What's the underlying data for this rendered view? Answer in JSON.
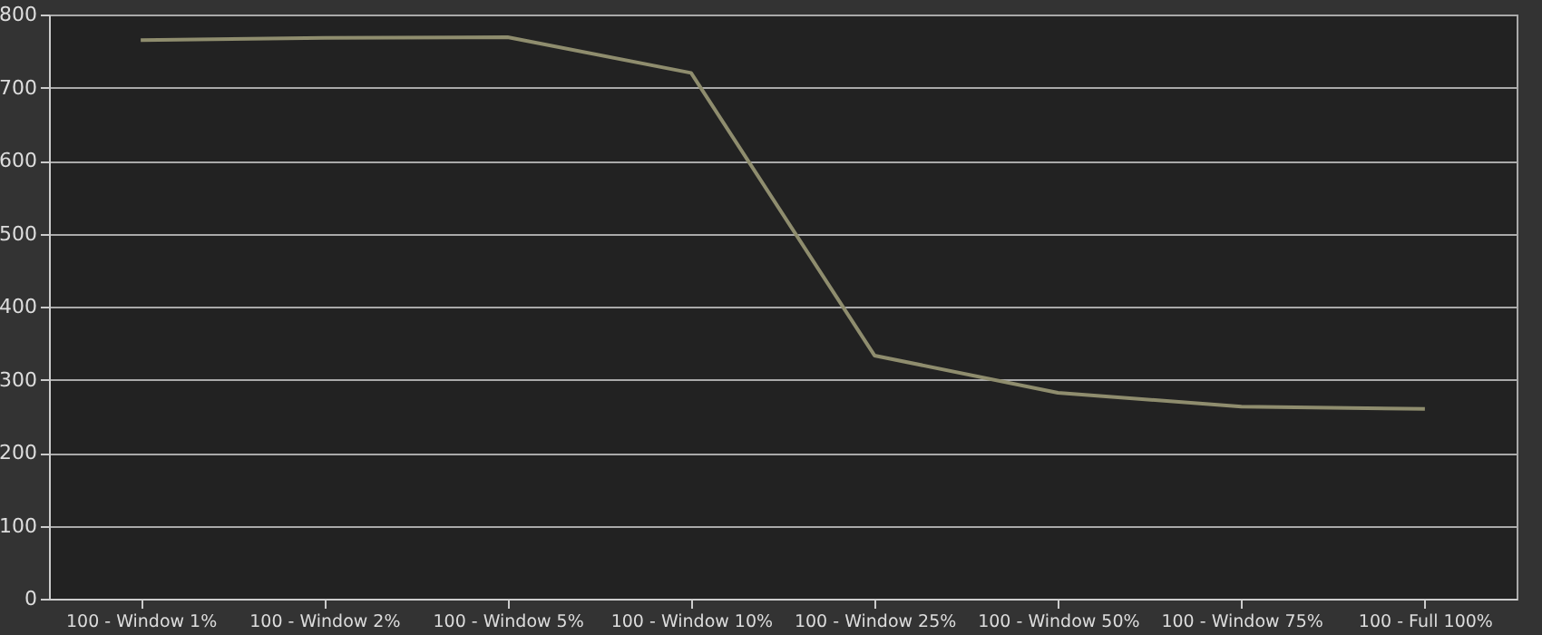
{
  "chart_data": {
    "type": "line",
    "categories": [
      "100 - Window  1%",
      "100 - Window  2%",
      "100 - Window  5%",
      "100 - Window 10%",
      "100 - Window 25%",
      "100 - Window 50%",
      "100 - Window 75%",
      "100 - Full  100%"
    ],
    "series": [
      {
        "color": "#8f8d6e",
        "values": [
          765,
          768,
          769,
          720,
          333,
          282,
          263,
          260
        ]
      }
    ],
    "ylim": [
      0,
      800
    ],
    "yticks": [
      0,
      100,
      200,
      300,
      400,
      500,
      600,
      700,
      800
    ],
    "grid": "y",
    "marker": "none",
    "line_style": "solid"
  }
}
